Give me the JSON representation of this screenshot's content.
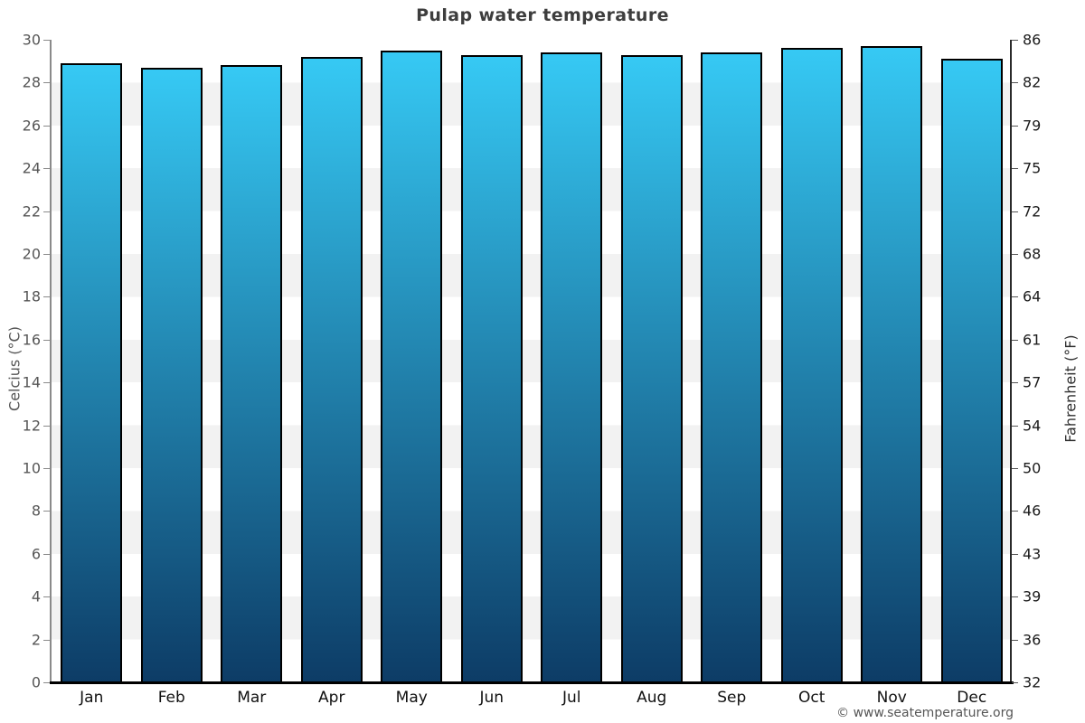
{
  "title": "Pulap water temperature",
  "footer": "© www.seatemperature.org",
  "chart_data": {
    "type": "bar",
    "title": "Pulap water temperature",
    "categories": [
      "Jan",
      "Feb",
      "Mar",
      "Apr",
      "May",
      "Jun",
      "Jul",
      "Aug",
      "Sep",
      "Oct",
      "Nov",
      "Dec"
    ],
    "values": [
      28.9,
      28.7,
      28.8,
      29.2,
      29.5,
      29.3,
      29.4,
      29.3,
      29.4,
      29.6,
      29.7,
      29.1
    ],
    "unit": "°C",
    "ylabel_left": "Celcius (°C)",
    "ylabel_right": "Fahrenheit (°F)",
    "ylim": [
      0,
      30
    ],
    "celsius_ticks": [
      30,
      28,
      26,
      24,
      22,
      20,
      18,
      16,
      14,
      12,
      10,
      8,
      6,
      4,
      2,
      0
    ],
    "fahrenheit_ticks": [
      86,
      82,
      79,
      75,
      72,
      68,
      64,
      61,
      57,
      54,
      50,
      46,
      43,
      39,
      36,
      32
    ],
    "grid": "alternating-horizontal-bands",
    "legend": "none",
    "colors": {
      "bar_gradient_top": "#36c9f4",
      "bar_gradient_bottom": "#0d3c66",
      "bar_border": "#000000",
      "band_light": "#ffffff",
      "band_gray": "#f2f2f2",
      "title_text": "#3d3d3d",
      "left_axis_text": "#565656",
      "right_axis_text": "#1c1c1c"
    }
  }
}
